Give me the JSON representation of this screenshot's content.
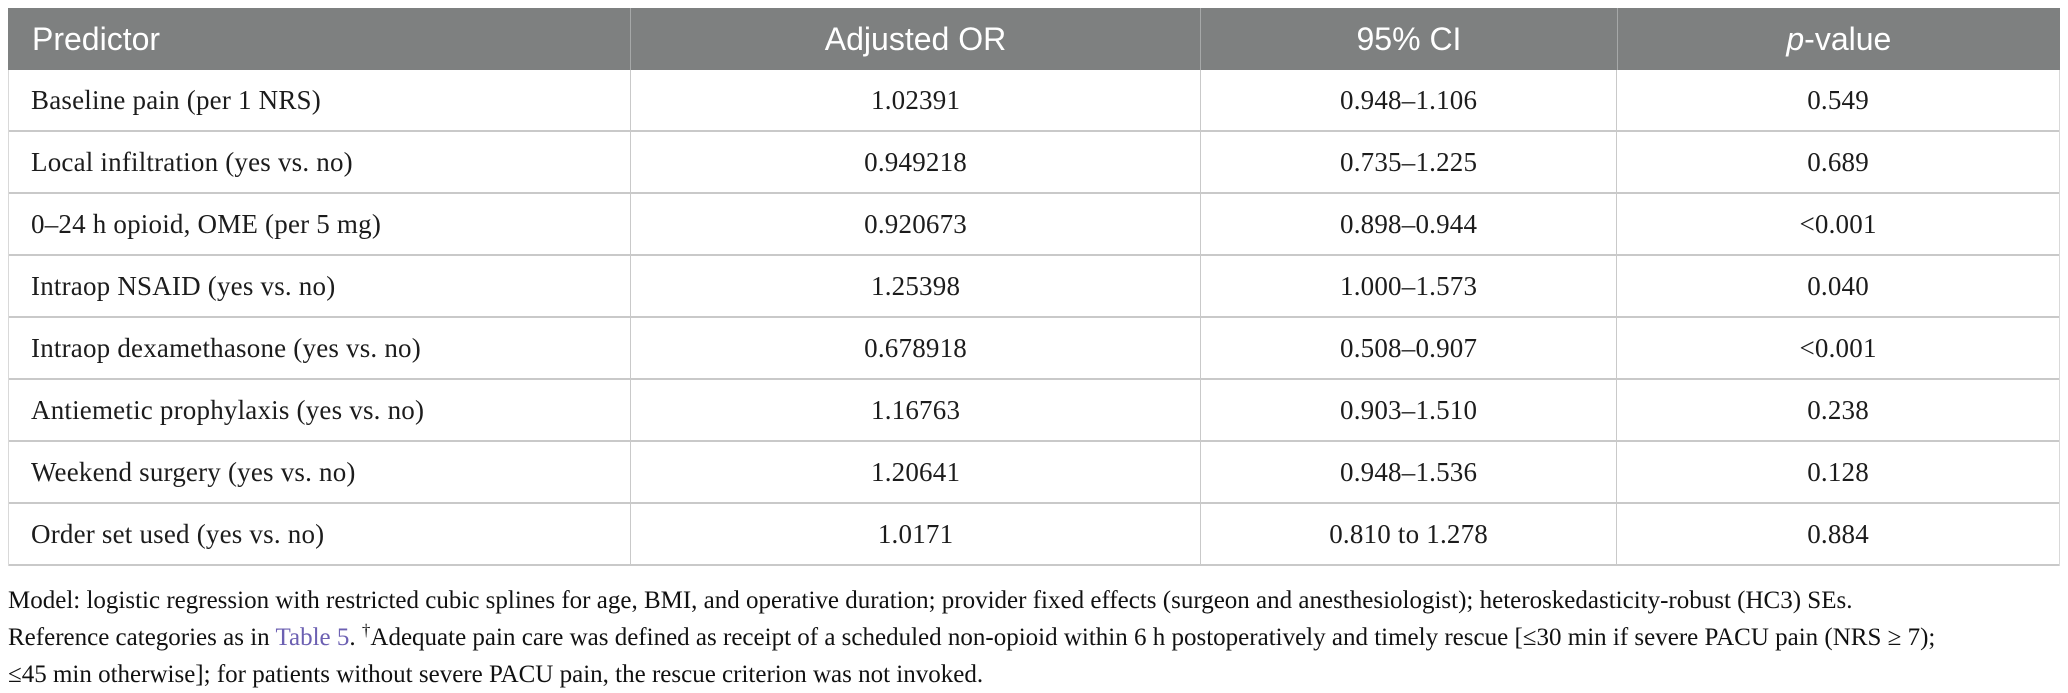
{
  "table": {
    "headers": {
      "predictor": "Predictor",
      "adjusted_or": "Adjusted OR",
      "ci": "95% CI",
      "p_italic": "p",
      "p_rest": "-value"
    },
    "rows": [
      {
        "predictor": "Baseline pain (per 1 NRS)",
        "adjusted_or": "1.02391",
        "ci": "0.948–1.106",
        "p": "0.549"
      },
      {
        "predictor": "Local infiltration (yes vs. no)",
        "adjusted_or": "0.949218",
        "ci": "0.735–1.225",
        "p": "0.689"
      },
      {
        "predictor": "0–24 h opioid, OME (per 5 mg)",
        "adjusted_or": "0.920673",
        "ci": "0.898–0.944",
        "p": "<0.001"
      },
      {
        "predictor": "Intraop NSAID (yes vs. no)",
        "adjusted_or": "1.25398",
        "ci": "1.000–1.573",
        "p": "0.040"
      },
      {
        "predictor": "Intraop dexamethasone (yes vs. no)",
        "adjusted_or": "0.678918",
        "ci": "0.508–0.907",
        "p": "<0.001"
      },
      {
        "predictor": "Antiemetic prophylaxis (yes vs. no)",
        "adjusted_or": "1.16763",
        "ci": "0.903–1.510",
        "p": "0.238"
      },
      {
        "predictor": "Weekend surgery (yes vs. no)",
        "adjusted_or": "1.20641",
        "ci": "0.948–1.536",
        "p": "0.128"
      },
      {
        "predictor": "Order set used (yes vs. no)",
        "adjusted_or": "1.0171",
        "ci": "0.810 to 1.278",
        "p": "0.884"
      }
    ]
  },
  "footnote": {
    "line1": "Model: logistic regression with restricted cubic splines for age, BMI, and operative duration; provider fixed effects (surgeon and anesthesiologist); heteroskedasticity-robust (HC3) SEs.",
    "line2_prefix": "Reference categories as in ",
    "link_text": "Table 5",
    "line2_after_link": ". ",
    "dagger": "†",
    "line2_text": "Adequate pain care was defined as receipt of a scheduled non-opioid within 6 h postoperatively and timely rescue [≤30 min if severe PACU pain (NRS ≥ 7);",
    "line3": "≤45 min otherwise]; for patients without severe PACU pain, the rescue criterion was not invoked."
  },
  "colors": {
    "header_bg": "#7e8080",
    "header_text": "#ffffff",
    "row_border": "#c9c9c9",
    "link": "#6c60b2",
    "body_text": "#1c1c1c"
  }
}
